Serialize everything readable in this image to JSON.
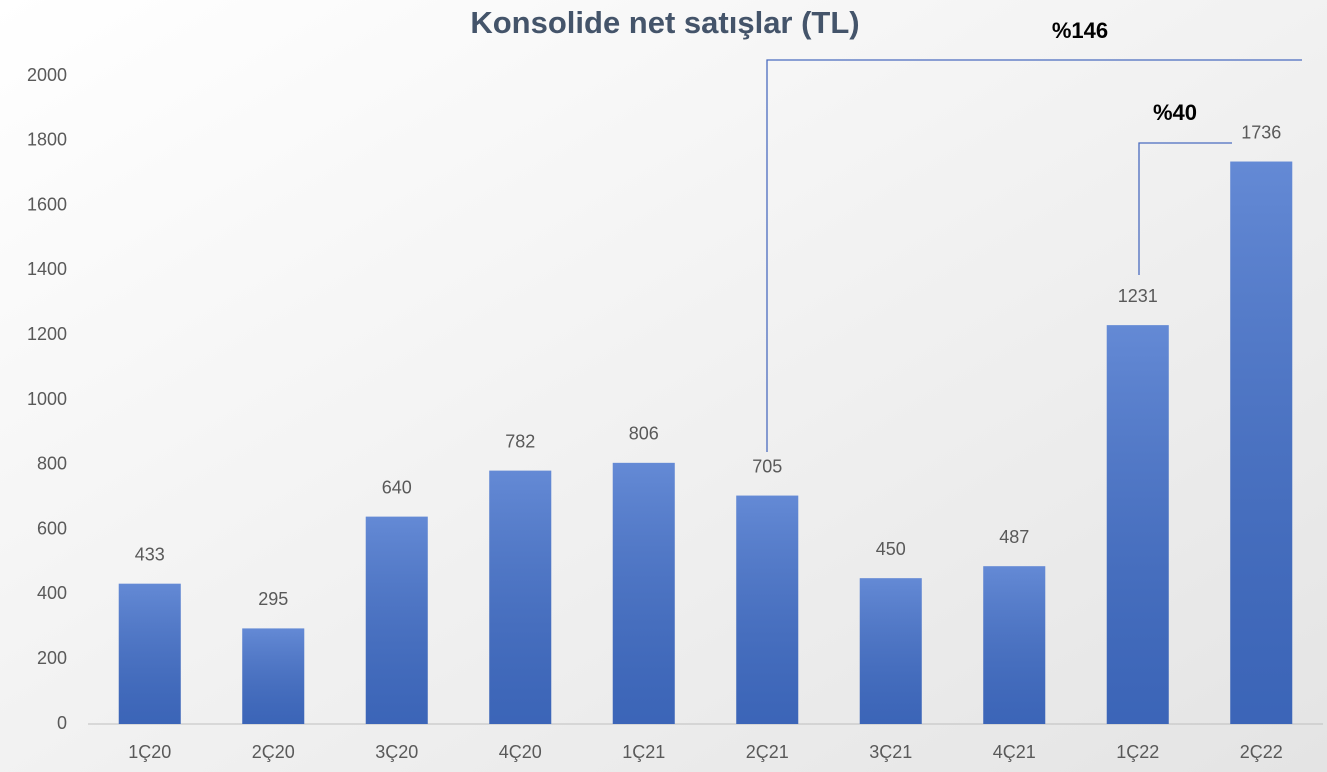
{
  "chart_data": {
    "type": "bar",
    "title": "Konsolide net satışlar (TL)",
    "categories": [
      "1Ç20",
      "2Ç20",
      "3Ç20",
      "4Ç20",
      "1Ç21",
      "2Ç21",
      "3Ç21",
      "4Ç21",
      "1Ç22",
      "2Ç22"
    ],
    "values": [
      433,
      295,
      640,
      782,
      806,
      705,
      450,
      487,
      1231,
      1736
    ],
    "color": "#4270cc",
    "ylim": [
      0,
      2000
    ],
    "yticks": [
      0,
      200,
      400,
      600,
      800,
      1000,
      1200,
      1400,
      1600,
      1800,
      2000
    ],
    "grid": false,
    "annotations": [
      "%146",
      "%40"
    ]
  }
}
